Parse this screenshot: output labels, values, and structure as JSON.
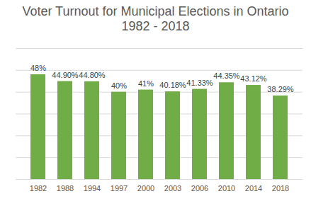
{
  "chart_data": {
    "type": "bar",
    "title": "Voter Turnout for Municipal Elections in Ontario\n1982 - 2018",
    "categories": [
      "1982",
      "1988",
      "1994",
      "1997",
      "2000",
      "2003",
      "2006",
      "2010",
      "2014",
      "2018"
    ],
    "values": [
      48,
      44.9,
      44.8,
      40,
      41,
      40.18,
      41.33,
      44.35,
      43.12,
      38.29
    ],
    "value_labels": [
      "48%",
      "44.90%",
      "44.80%",
      "40%",
      "41%",
      "40.18%",
      "41.33%",
      "44.35%",
      "43.12%",
      "38.29%"
    ],
    "color": "#70ad47",
    "ylim": [
      0,
      60
    ],
    "yticks": [
      0,
      10,
      20,
      30,
      40,
      50,
      60
    ],
    "grid": true,
    "data_labels": true,
    "tick_labels": "x"
  }
}
